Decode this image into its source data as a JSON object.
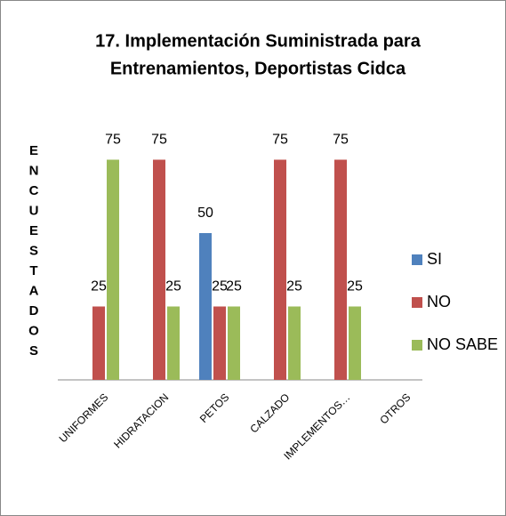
{
  "chart_data": {
    "type": "bar",
    "title": [
      "17. Implementación Suministrada para",
      "Entrenamientos, Deportistas Cidca"
    ],
    "y_label": [
      "E",
      "N",
      "C",
      "U",
      "E",
      "S",
      "T",
      "A",
      "D",
      "O",
      "S"
    ],
    "categories": [
      "UNIFORMES",
      "HIDRATACION",
      "PETOS",
      "CALZADO",
      "IMPLEMENTOS…",
      "OTROS"
    ],
    "series": [
      {
        "name": "SI",
        "color": "#4f81bd",
        "values": [
          null,
          null,
          50,
          null,
          null,
          null
        ]
      },
      {
        "name": "NO",
        "color": "#c0504d",
        "values": [
          25,
          75,
          25,
          75,
          75,
          null
        ]
      },
      {
        "name": "NO SABE",
        "color": "#9bbb59",
        "values": [
          75,
          25,
          25,
          25,
          25,
          null
        ]
      }
    ],
    "ylim": [
      0,
      80
    ],
    "legend": "right"
  }
}
